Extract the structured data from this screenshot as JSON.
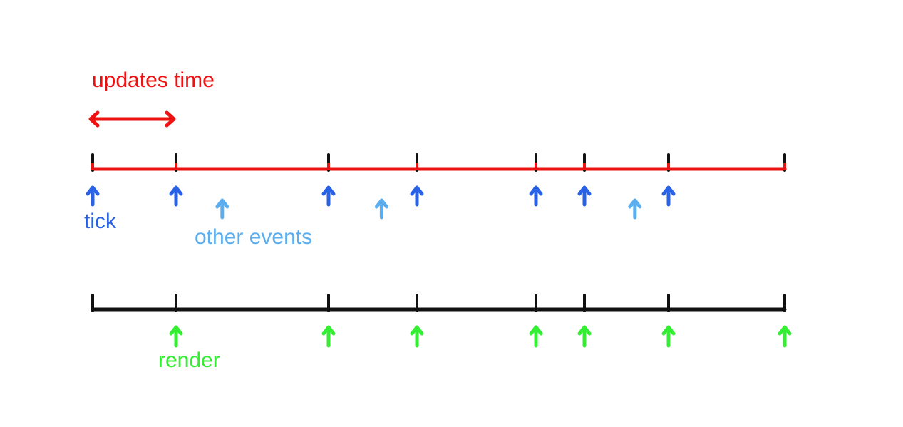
{
  "labels": {
    "updates_time": "updates time",
    "tick": "tick",
    "other_events": "other events",
    "render": "render"
  },
  "colors": {
    "update_line": "#ee1111",
    "tick_marks": "#111111",
    "render_line": "#111111",
    "tick_arrow": "#2a62e6",
    "other_event_arrow": "#5aaef0",
    "render_arrow": "#33ee33",
    "updates_label": "#ee1111",
    "tick_label": "#2a62e6",
    "other_label": "#5aaef0",
    "render_label": "#33ee33"
  },
  "update_timeline": {
    "ticks": [
      0,
      1,
      3,
      4,
      5,
      6,
      7,
      8
    ]
  },
  "render_timeline": {
    "ticks": [
      0,
      1,
      3,
      4,
      5,
      6,
      7,
      8
    ]
  },
  "tick_arrows": [
    0,
    1,
    3,
    4,
    5,
    6,
    7
  ],
  "other_event_arrows": [
    1.6,
    3.6,
    6.6
  ],
  "render_arrows": [
    1,
    3,
    4,
    5,
    6,
    7,
    8
  ],
  "updates_interval": [
    0,
    1
  ]
}
